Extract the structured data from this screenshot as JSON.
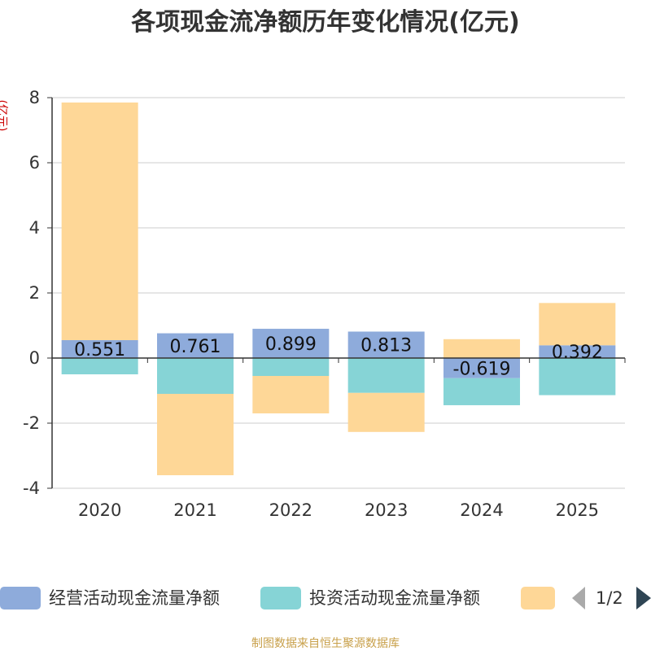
{
  "chart_data": {
    "type": "bar",
    "stacked": true,
    "title": "各项现金流净额历年变化情况(亿元)",
    "ylabel": "(亿元)",
    "xlabel": "",
    "ylim": [
      -4,
      8
    ],
    "yticks": [
      8,
      6,
      4,
      2,
      0,
      -2,
      -4
    ],
    "categories": [
      "2020",
      "2021",
      "2022",
      "2023",
      "2024",
      "2025"
    ],
    "series": [
      {
        "name": "经营活动现金流量净额",
        "color": "#8eabdb",
        "values": [
          0.551,
          0.761,
          0.899,
          0.813,
          -0.619,
          0.392
        ],
        "labels": [
          "0.551",
          "0.761",
          "0.899",
          "0.813",
          "-0.619",
          "0.392"
        ]
      },
      {
        "name": "投资活动现金流量净额",
        "color": "#86d4d6",
        "values": [
          -0.5,
          -1.1,
          -0.55,
          -1.07,
          -0.83,
          -1.14
        ]
      },
      {
        "name": "",
        "color": "#fed797",
        "values": [
          7.3,
          -2.5,
          -1.15,
          -1.2,
          0.58,
          1.3
        ]
      }
    ],
    "grid": true,
    "legend": "bottom"
  },
  "legend": {
    "page": "1/2"
  },
  "footer": {
    "source": "制图数据来自恒生聚源数据库"
  }
}
